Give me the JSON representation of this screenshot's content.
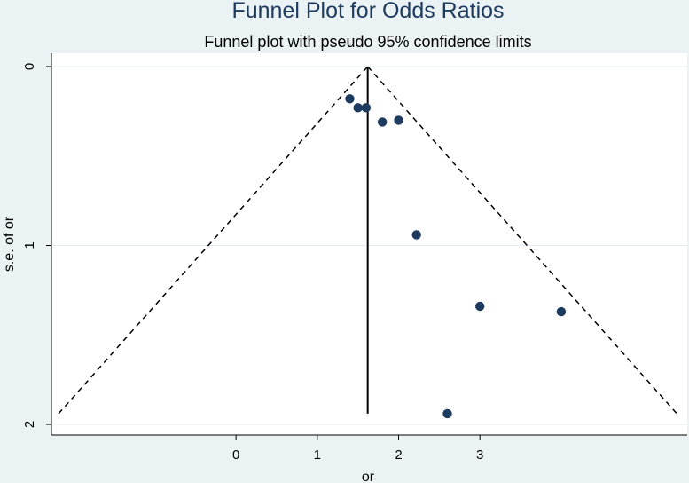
{
  "chart_data": {
    "type": "scatter",
    "title": "Funnel Plot for Odds Ratios",
    "subtitle": "Funnel plot with pseudo 95% confidence limits",
    "xlabel": "or",
    "ylabel": "s.e. of or",
    "xlim": [
      -2.27,
      5.55
    ],
    "ylim": [
      0,
      2.05
    ],
    "y_inverted": true,
    "grid": true,
    "x_ticks": [
      0,
      1,
      2,
      3
    ],
    "y_ticks": [
      0,
      1,
      2
    ],
    "pooled_estimate": 1.62,
    "funnel_max_se": 1.94,
    "points": [
      {
        "x": 1.4,
        "y": 0.18
      },
      {
        "x": 1.5,
        "y": 0.23
      },
      {
        "x": 1.6,
        "y": 0.23
      },
      {
        "x": 1.8,
        "y": 0.31
      },
      {
        "x": 2.0,
        "y": 0.3
      },
      {
        "x": 2.22,
        "y": 0.94
      },
      {
        "x": 2.6,
        "y": 1.94
      },
      {
        "x": 3.0,
        "y": 1.34
      },
      {
        "x": 4.0,
        "y": 1.37
      }
    ],
    "colors": {
      "points": "#1d3a5f",
      "title": "#1d3a5f",
      "background": "#eaf2f3",
      "plot_area": "#ffffff",
      "grid": "#e3ecee"
    }
  }
}
